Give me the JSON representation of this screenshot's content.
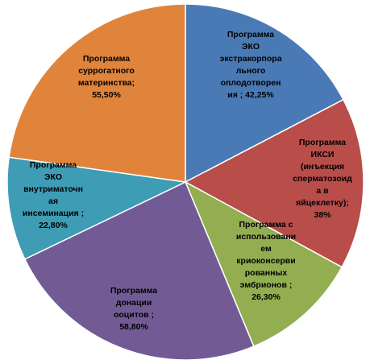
{
  "chart_data": {
    "type": "pie",
    "title": "",
    "slices": [
      {
        "lines": [
          "Программа",
          "ЭКО",
          "экстракорпора",
          "льного",
          "оплодотворен",
          "ия ; 42,25%"
        ],
        "label": "Программа ЭКО экстракорпорального оплодотворения",
        "value": 42.25,
        "display": "42,25%",
        "color": "#4a7ab5",
        "text_color": "#000000"
      },
      {
        "lines": [
          "Программа",
          "ИКСИ",
          "(инъекция",
          "сперматозоид",
          "а в",
          "яйцеклетку);",
          "38%"
        ],
        "label": "Программа ИКСИ (инъекция сперматозоида в яйцеклетку)",
        "value": 38,
        "display": "38%",
        "color": "#b84d49",
        "text_color": "#000000"
      },
      {
        "lines": [
          "Программа  с",
          "использовани",
          "ем",
          "криоконсерви",
          "рованных",
          "эмбрионов ;",
          "26,30%"
        ],
        "label": "Программа с использованием криоконсервированных эмбрионов",
        "value": 26.3,
        "display": "26,30%",
        "color": "#93ae51",
        "text_color": "#000000"
      },
      {
        "lines": [
          "Программа",
          "донации",
          "ооцитов ;",
          "58,80%"
        ],
        "label": "Программа донации ооцитов",
        "value": 58.8,
        "display": "58,80%",
        "color": "#725b94",
        "text_color": "#000000"
      },
      {
        "lines": [
          "Программа",
          "ЭКО",
          "внутриматочн",
          "ая",
          "инсеминация  ;",
          "22,80%"
        ],
        "label": "Программа ЭКО внутриматочная инсеминация",
        "value": 22.8,
        "display": "22,80%",
        "color": "#3e9cb4",
        "text_color": "#000000"
      },
      {
        "lines": [
          "Программа",
          "суррогатного",
          "материнства;",
          "55,50%"
        ],
        "label": "Программа суррогатного материнства",
        "value": 55.5,
        "display": "55,50%",
        "color": "#e0843c",
        "text_color": "#000000"
      }
    ],
    "legend": "none",
    "data_labels": "inside"
  }
}
